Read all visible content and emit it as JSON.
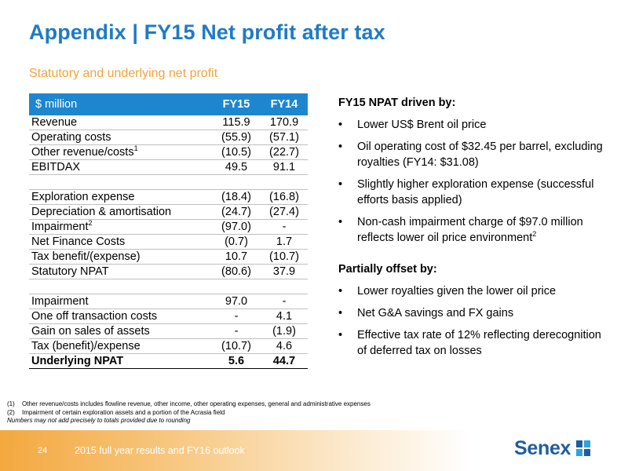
{
  "header": {
    "title": "Appendix | FY15 Net profit after tax",
    "subtitle": "Statutory and underlying net profit"
  },
  "table": {
    "col_label": "$ million",
    "col_fy15": "FY15",
    "col_fy14": "FY14",
    "rows": [
      {
        "label": "Revenue",
        "fy15": "115.9",
        "fy14": "170.9"
      },
      {
        "label": "Operating costs",
        "fy15": "(55.9)",
        "fy14": "(57.1)"
      },
      {
        "label": "Other revenue/costs",
        "sup": "1",
        "fy15": "(10.5)",
        "fy14": "(22.7)"
      },
      {
        "label": "EBITDAX",
        "fy15": "49.5",
        "fy14": "91.1"
      },
      {
        "label": "Exploration expense",
        "fy15": "(18.4)",
        "fy14": "(16.8)"
      },
      {
        "label": "Depreciation & amortisation",
        "fy15": "(24.7)",
        "fy14": "(27.4)"
      },
      {
        "label": "Impairment",
        "sup": "2",
        "fy15": "(97.0)",
        "fy14": "-"
      },
      {
        "label": "Net Finance Costs",
        "fy15": "(0.7)",
        "fy14": "1.7"
      },
      {
        "label": "Tax benefit/(expense)",
        "fy15": "10.7",
        "fy14": "(10.7)"
      },
      {
        "label": "Statutory NPAT",
        "fy15": "(80.6)",
        "fy14": "37.9"
      },
      {
        "label": "Impairment",
        "fy15": "97.0",
        "fy14": "-"
      },
      {
        "label": "One off transaction costs",
        "fy15": "-",
        "fy14": "4.1"
      },
      {
        "label": "Gain on sales of assets",
        "fy15": "-",
        "fy14": "(1.9)"
      },
      {
        "label": "Tax (benefit)/expense",
        "fy15": "(10.7)",
        "fy14": "4.6"
      },
      {
        "label": "Underlying NPAT",
        "fy15": "5.6",
        "fy14": "44.7"
      }
    ]
  },
  "drivers": {
    "heading": "FY15 NPAT driven by:",
    "bullet": "•",
    "items": [
      {
        "text": "Lower US$ Brent oil price"
      },
      {
        "text": "Oil operating cost of $32.45 per barrel, excluding royalties (FY14: $31.08)"
      },
      {
        "text": "Slightly higher exploration expense (successful efforts basis applied)"
      },
      {
        "text": "Non-cash impairment charge of $97.0 million reflects lower oil price environment",
        "sup": "2"
      }
    ]
  },
  "offsets": {
    "heading": "Partially offset by:",
    "items": [
      {
        "text": "Lower royalties given the lower oil price"
      },
      {
        "text": "Net G&A savings and FX gains"
      },
      {
        "text": "Effective tax rate of 12% reflecting derecognition of deferred tax on losses"
      }
    ]
  },
  "footnotes": {
    "n1_idx": "(1)",
    "n1": "Other revenue/costs includes flowline revenue, other income, other operating expenses, general and administrative expenses",
    "n2_idx": "(2)",
    "n2": "Impairment of certain exploration assets and a portion of the Acrasia field",
    "note": "Numbers may not add  precisely to totals provided due to rounding"
  },
  "footer": {
    "page": "24",
    "text": "2015 full year results and FY16 outlook",
    "logo_text": "Senex",
    "logo_icon": "senex-logo-icon"
  },
  "colors": {
    "title": "#1f7bc4",
    "subtitle": "#f2a33a",
    "table_header": "#1d86cf",
    "logo": "#1f5d9e",
    "logo_accent": "#2ea3dc"
  }
}
